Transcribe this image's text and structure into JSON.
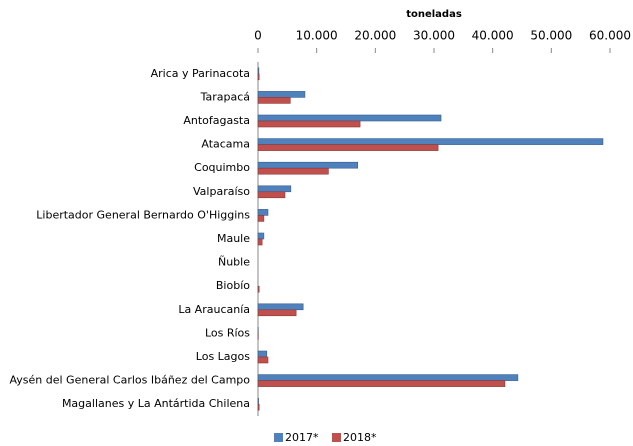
{
  "chart_data": {
    "type": "bar",
    "orientation": "horizontal",
    "x_label": "toneladas",
    "categories": [
      "Arica y Parinacota",
      "Tarapacá",
      "Antofagasta",
      "Atacama",
      "Coquimbo",
      "Valparaíso",
      "Libertador General Bernardo O'Higgins",
      "Maule",
      "Ñuble",
      "Biobío",
      "La Araucanía",
      "Los Ríos",
      "Los Lagos",
      "Aysén del General Carlos Ibáñez del Campo",
      "Magallanes y La Antártida Chilena"
    ],
    "series": [
      {
        "name": "2017*",
        "color": "#4f81bd",
        "values": [
          150,
          8000,
          31200,
          58800,
          17000,
          5600,
          1700,
          1000,
          0,
          0,
          7700,
          50,
          1500,
          44300,
          100
        ]
      },
      {
        "name": "2018*",
        "color": "#c0504d",
        "values": [
          200,
          5500,
          17400,
          30700,
          12000,
          4600,
          1000,
          700,
          0,
          200,
          6500,
          50,
          1700,
          42100,
          200
        ]
      }
    ],
    "xlim": [
      0,
      60000
    ],
    "xticks": [
      0,
      {
        "value": 10000,
        "label": "10.000"
      },
      {
        "value": 20000,
        "label": "20.000"
      },
      {
        "value": 30000,
        "label": "30.000"
      },
      {
        "value": 40000,
        "label": "40.000"
      },
      {
        "value": 50000,
        "label": "50.000"
      },
      {
        "value": 60000,
        "label": "60.000"
      }
    ],
    "legend": "bottom"
  }
}
